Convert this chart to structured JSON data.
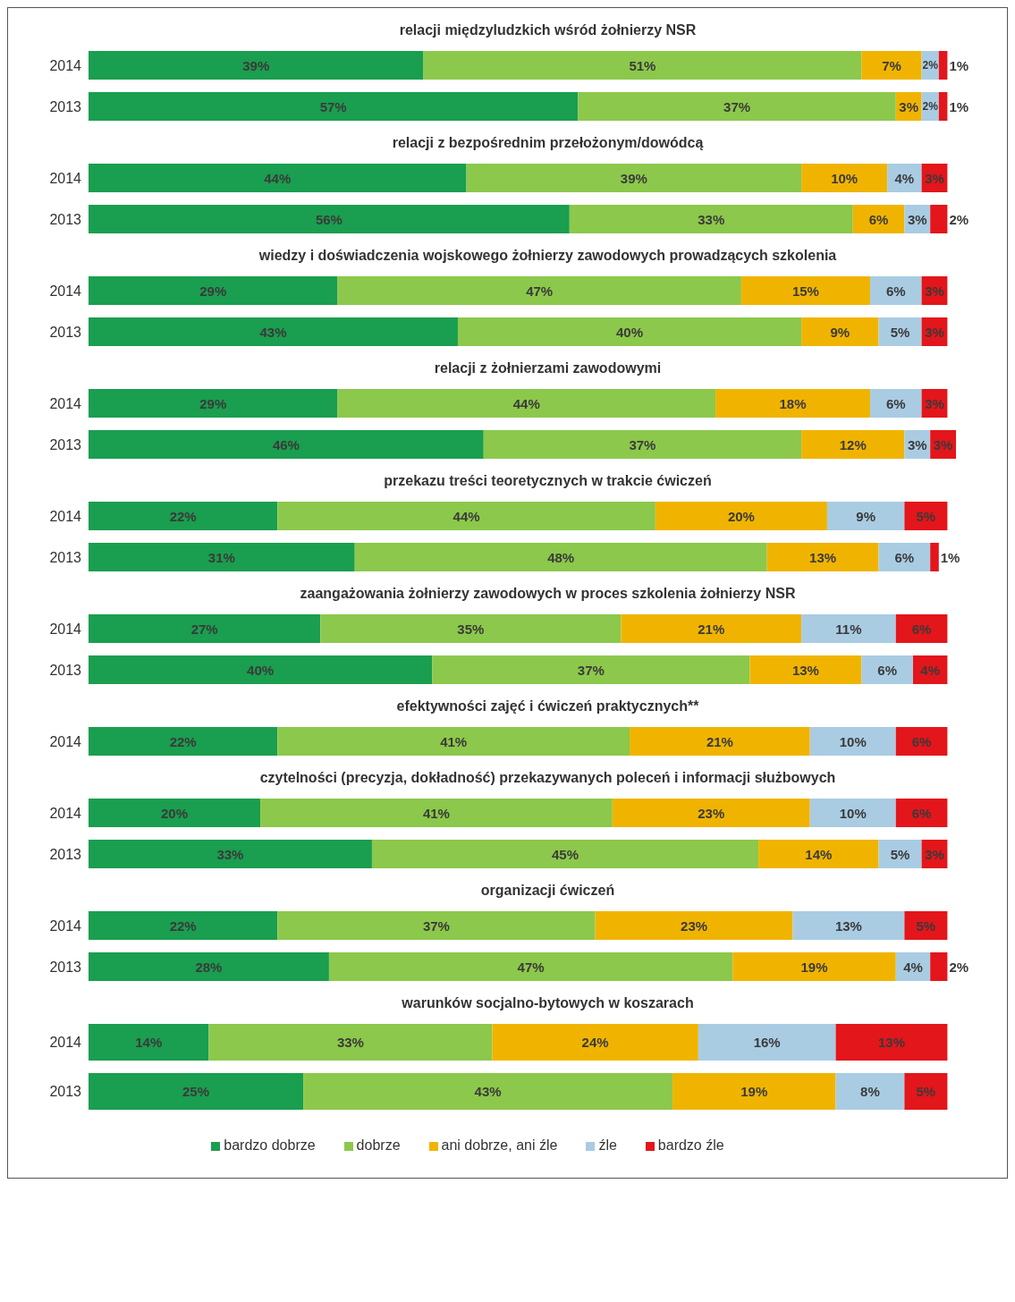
{
  "chart_data": [
    {
      "type": "bar",
      "orientation": "horizontal",
      "stacked": true,
      "tick_labels": "y",
      "title": "relacji międzyludzkich wśród żołnierzy NSR",
      "categories": [
        "2014",
        "2013"
      ],
      "series": [
        {
          "color": "#1a9e4f",
          "values": [
            39,
            57
          ],
          "value_labels": [
            "39%",
            "57%"
          ]
        },
        {
          "color": "#8cc84b",
          "values": [
            51,
            37
          ],
          "value_labels": [
            "51%",
            "37%"
          ]
        },
        {
          "color": "#f0b400",
          "values": [
            7,
            3
          ],
          "value_labels": [
            "7%",
            "3%"
          ]
        },
        {
          "color": "#a9cce3",
          "values": [
            2,
            2
          ],
          "value_labels": [
            "2%",
            "2%"
          ]
        },
        {
          "color": "#e3161b",
          "values": [
            1,
            1
          ],
          "value_labels": [
            "1%",
            "1%"
          ]
        }
      ]
    },
    {
      "type": "bar",
      "orientation": "horizontal",
      "stacked": true,
      "tick_labels": "y",
      "title": "relacji z bezpośrednim przełożonym/dowódcą",
      "categories": [
        "2014",
        "2013"
      ],
      "series": [
        {
          "color": "#1a9e4f",
          "values": [
            44,
            56
          ],
          "value_labels": [
            "44%",
            "56%"
          ]
        },
        {
          "color": "#8cc84b",
          "values": [
            39,
            33
          ],
          "value_labels": [
            "39%",
            "33%"
          ]
        },
        {
          "color": "#f0b400",
          "values": [
            10,
            6
          ],
          "value_labels": [
            "10%",
            "6%"
          ]
        },
        {
          "color": "#a9cce3",
          "values": [
            4,
            3
          ],
          "value_labels": [
            "4%",
            "3%"
          ]
        },
        {
          "color": "#e3161b",
          "values": [
            3,
            2
          ],
          "value_labels": [
            "3%",
            "2%"
          ]
        }
      ]
    },
    {
      "type": "bar",
      "orientation": "horizontal",
      "stacked": true,
      "tick_labels": "y",
      "title": "wiedzy i doświadczenia wojskowego żołnierzy zawodowych prowadzących szkolenia",
      "categories": [
        "2014",
        "2013"
      ],
      "series": [
        {
          "color": "#1a9e4f",
          "values": [
            29,
            43
          ],
          "value_labels": [
            "29%",
            "43%"
          ]
        },
        {
          "color": "#8cc84b",
          "values": [
            47,
            40
          ],
          "value_labels": [
            "47%",
            "40%"
          ]
        },
        {
          "color": "#f0b400",
          "values": [
            15,
            9
          ],
          "value_labels": [
            "15%",
            "9%"
          ]
        },
        {
          "color": "#a9cce3",
          "values": [
            6,
            5
          ],
          "value_labels": [
            "6%",
            "5%"
          ]
        },
        {
          "color": "#e3161b",
          "values": [
            3,
            3
          ],
          "value_labels": [
            "3%",
            "3%"
          ]
        }
      ]
    },
    {
      "type": "bar",
      "orientation": "horizontal",
      "stacked": true,
      "tick_labels": "y",
      "title": "relacji z żołnierzami zawodowymi",
      "categories": [
        "2014",
        "2013"
      ],
      "series": [
        {
          "color": "#1a9e4f",
          "values": [
            29,
            46
          ],
          "value_labels": [
            "29%",
            "46%"
          ]
        },
        {
          "color": "#8cc84b",
          "values": [
            44,
            37
          ],
          "value_labels": [
            "44%",
            "37%"
          ]
        },
        {
          "color": "#f0b400",
          "values": [
            18,
            12
          ],
          "value_labels": [
            "18%",
            "12%"
          ]
        },
        {
          "color": "#a9cce3",
          "values": [
            6,
            3
          ],
          "value_labels": [
            "6%",
            "3%"
          ]
        },
        {
          "color": "#e3161b",
          "values": [
            3,
            3
          ],
          "value_labels": [
            "3%",
            "3%"
          ]
        }
      ]
    },
    {
      "type": "bar",
      "orientation": "horizontal",
      "stacked": true,
      "tick_labels": "y",
      "title": "przekazu treści teoretycznych w trakcie ćwiczeń",
      "categories": [
        "2014",
        "2013"
      ],
      "series": [
        {
          "color": "#1a9e4f",
          "values": [
            22,
            31
          ],
          "value_labels": [
            "22%",
            "31%"
          ]
        },
        {
          "color": "#8cc84b",
          "values": [
            44,
            48
          ],
          "value_labels": [
            "44%",
            "48%"
          ]
        },
        {
          "color": "#f0b400",
          "values": [
            20,
            13
          ],
          "value_labels": [
            "20%",
            "13%"
          ]
        },
        {
          "color": "#a9cce3",
          "values": [
            9,
            6
          ],
          "value_labels": [
            "9%",
            "6%"
          ]
        },
        {
          "color": "#e3161b",
          "values": [
            5,
            1
          ],
          "value_labels": [
            "5%",
            "1%"
          ]
        }
      ]
    },
    {
      "type": "bar",
      "orientation": "horizontal",
      "stacked": true,
      "tick_labels": "y",
      "title": "zaangażowania żołnierzy zawodowych w proces szkolenia żołnierzy NSR",
      "categories": [
        "2014",
        "2013"
      ],
      "series": [
        {
          "color": "#1a9e4f",
          "values": [
            27,
            40
          ],
          "value_labels": [
            "27%",
            "40%"
          ]
        },
        {
          "color": "#8cc84b",
          "values": [
            35,
            37
          ],
          "value_labels": [
            "35%",
            "37%"
          ]
        },
        {
          "color": "#f0b400",
          "values": [
            21,
            13
          ],
          "value_labels": [
            "21%",
            "13%"
          ]
        },
        {
          "color": "#a9cce3",
          "values": [
            11,
            6
          ],
          "value_labels": [
            "11%",
            "6%"
          ]
        },
        {
          "color": "#e3161b",
          "values": [
            6,
            4
          ],
          "value_labels": [
            "6%",
            "4%"
          ]
        }
      ]
    },
    {
      "type": "bar",
      "orientation": "horizontal",
      "stacked": true,
      "tick_labels": "y",
      "title": "efektywności zajęć i ćwiczeń praktycznych**",
      "categories": [
        "2014"
      ],
      "series": [
        {
          "color": "#1a9e4f",
          "values": [
            22
          ],
          "value_labels": [
            "22%"
          ]
        },
        {
          "color": "#8cc84b",
          "values": [
            41
          ],
          "value_labels": [
            "41%"
          ]
        },
        {
          "color": "#f0b400",
          "values": [
            21
          ],
          "value_labels": [
            "21%"
          ]
        },
        {
          "color": "#a9cce3",
          "values": [
            10
          ],
          "value_labels": [
            "10%"
          ]
        },
        {
          "color": "#e3161b",
          "values": [
            6
          ],
          "value_labels": [
            "6%"
          ]
        }
      ]
    },
    {
      "type": "bar",
      "orientation": "horizontal",
      "stacked": true,
      "tick_labels": "y",
      "title": "czytelności (precyzja, dokładność) przekazywanych poleceń i informacji służbowych",
      "categories": [
        "2014",
        "2013"
      ],
      "series": [
        {
          "color": "#1a9e4f",
          "values": [
            20,
            33
          ],
          "value_labels": [
            "20%",
            "33%"
          ]
        },
        {
          "color": "#8cc84b",
          "values": [
            41,
            45
          ],
          "value_labels": [
            "41%",
            "45%"
          ]
        },
        {
          "color": "#f0b400",
          "values": [
            23,
            14
          ],
          "value_labels": [
            "23%",
            "14%"
          ]
        },
        {
          "color": "#a9cce3",
          "values": [
            10,
            5
          ],
          "value_labels": [
            "10%",
            "5%"
          ]
        },
        {
          "color": "#e3161b",
          "values": [
            6,
            3
          ],
          "value_labels": [
            "6%",
            "3%"
          ]
        }
      ]
    },
    {
      "type": "bar",
      "orientation": "horizontal",
      "stacked": true,
      "tick_labels": "y",
      "title": "organizacji ćwiczeń",
      "categories": [
        "2014",
        "2013"
      ],
      "series": [
        {
          "color": "#1a9e4f",
          "values": [
            22,
            28
          ],
          "value_labels": [
            "22%",
            "28%"
          ]
        },
        {
          "color": "#8cc84b",
          "values": [
            37,
            47
          ],
          "value_labels": [
            "37%",
            "47%"
          ]
        },
        {
          "color": "#f0b400",
          "values": [
            23,
            19
          ],
          "value_labels": [
            "23%",
            "19%"
          ]
        },
        {
          "color": "#a9cce3",
          "values": [
            13,
            4
          ],
          "value_labels": [
            "13%",
            "4%"
          ]
        },
        {
          "color": "#e3161b",
          "values": [
            5,
            2
          ],
          "value_labels": [
            "5%",
            "2%"
          ]
        }
      ]
    },
    {
      "type": "bar",
      "orientation": "horizontal",
      "stacked": true,
      "tick_labels": "y",
      "legend": "bottom",
      "title": "warunków socjalno-bytowych w koszarach",
      "categories": [
        "2014",
        "2013"
      ],
      "series": [
        {
          "name": "bardzo dobrze",
          "color": "#1a9e4f",
          "values": [
            14,
            25
          ],
          "value_labels": [
            "14%",
            "25%"
          ]
        },
        {
          "name": "dobrze",
          "color": "#8cc84b",
          "values": [
            33,
            43
          ],
          "value_labels": [
            "33%",
            "43%"
          ]
        },
        {
          "name": "ani dobrze, ani źle",
          "color": "#f0b400",
          "values": [
            24,
            19
          ],
          "value_labels": [
            "24%",
            "19%"
          ]
        },
        {
          "name": "źle",
          "color": "#a9cce3",
          "values": [
            16,
            8
          ],
          "value_labels": [
            "16%",
            "8%"
          ]
        },
        {
          "name": "bardzo źle",
          "color": "#e3161b",
          "values": [
            13,
            5
          ],
          "value_labels": [
            "13%",
            "5%"
          ]
        }
      ]
    }
  ]
}
